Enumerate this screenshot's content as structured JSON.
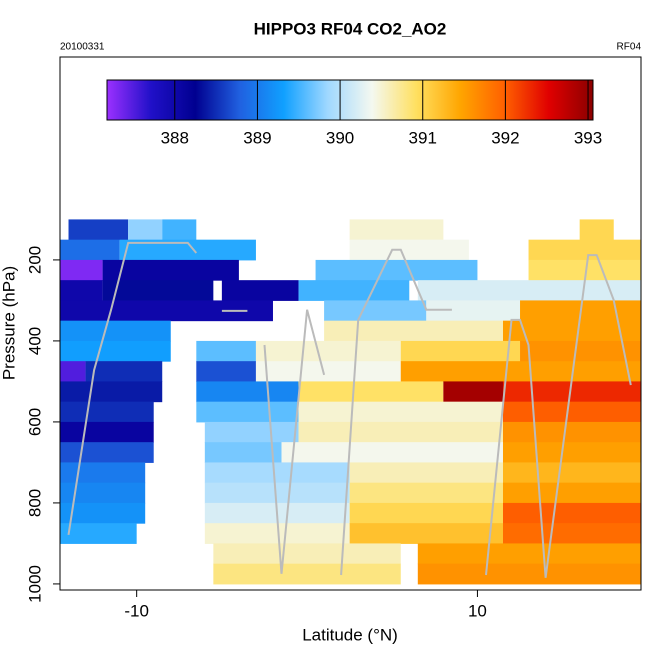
{
  "chart_data": {
    "type": "heatmap",
    "title": "HIPPO3 RF04 CO2_AO2",
    "left_note": "20100331",
    "right_note": "RF04",
    "xlabel": "Latitude (°N)",
    "ylabel": "Pressure (hPa)",
    "xlim": [
      -14.5,
      19.6
    ],
    "xticks": [
      -10,
      10
    ],
    "ylim": [
      1015,
      -301
    ],
    "yticks": [
      200,
      400,
      600,
      800,
      1000
    ],
    "clim": [
      387.18,
      393.06
    ],
    "cticks": [
      388,
      389,
      390,
      391,
      392,
      393
    ],
    "colorscale": [
      "#9b30ff",
      "#2010c8",
      "#000090",
      "#2060e0",
      "#10a0ff",
      "#a0d8ff",
      "#f4f8f0",
      "#ffe060",
      "#ffa500",
      "#ff6000",
      "#e00000",
      "#8b0000"
    ],
    "rows": [
      {
        "p": [
          100,
          150
        ],
        "cells": [
          [
            -14,
            -10.5,
            388.6
          ],
          [
            -10.5,
            -8.5,
            389.8
          ],
          [
            -8.5,
            -6.5,
            389.5
          ],
          [
            2.5,
            8,
            390.5
          ],
          [
            16,
            18,
            391
          ]
        ]
      },
      {
        "p": [
          150,
          200
        ],
        "cells": [
          [
            -14.5,
            -11,
            388.9
          ],
          [
            -11,
            -3,
            389.4
          ],
          [
            2.5,
            9.5,
            390.4
          ],
          [
            13,
            19.6,
            391
          ]
        ]
      },
      {
        "p": [
          200,
          250
        ],
        "cells": [
          [
            -14.5,
            -12,
            387.3
          ],
          [
            -12,
            -4,
            388.1
          ],
          [
            0.5,
            10,
            389.6
          ],
          [
            13,
            19.6,
            390.9
          ]
        ]
      },
      {
        "p": [
          250,
          300
        ],
        "cells": [
          [
            -14.5,
            -12,
            388
          ],
          [
            -12,
            -5.5,
            388.3
          ],
          [
            -5,
            -0.5,
            388.1
          ],
          [
            -0.5,
            6,
            389.5
          ],
          [
            6.5,
            19.6,
            390.2
          ]
        ]
      },
      {
        "p": [
          300,
          350
        ],
        "cells": [
          [
            -14.5,
            -2,
            388
          ],
          [
            1,
            7,
            389.7
          ],
          [
            7,
            12.5,
            390.3
          ],
          [
            12.5,
            19.6,
            391.5
          ]
        ]
      },
      {
        "p": [
          350,
          400
        ],
        "cells": [
          [
            -14.5,
            -8,
            389.2
          ],
          [
            1,
            11.5,
            390.6
          ],
          [
            11.5,
            19.6,
            391.5
          ]
        ]
      },
      {
        "p": [
          400,
          450
        ],
        "cells": [
          [
            -14.5,
            -8,
            389.3
          ],
          [
            -6.5,
            -3,
            389.6
          ],
          [
            -3,
            5.5,
            390.5
          ],
          [
            5.5,
            12.5,
            391
          ],
          [
            12.5,
            19.6,
            391.6
          ]
        ]
      },
      {
        "p": [
          450,
          500
        ],
        "cells": [
          [
            -14.5,
            -13,
            387.5
          ],
          [
            -13,
            -8.5,
            388.5
          ],
          [
            -6.5,
            -3,
            388.7
          ],
          [
            -3,
            5.5,
            390.4
          ],
          [
            5.5,
            19.6,
            391.5
          ]
        ]
      },
      {
        "p": [
          500,
          550
        ],
        "cells": [
          [
            -14.5,
            -8.5,
            388.4
          ],
          [
            -6.5,
            -0.5,
            389.1
          ],
          [
            -0.5,
            8,
            390.9
          ],
          [
            8,
            11.5,
            392.9
          ],
          [
            11.5,
            19.6,
            392.3
          ]
        ]
      },
      {
        "p": [
          550,
          600
        ],
        "cells": [
          [
            -14.5,
            -9,
            388.5
          ],
          [
            -6.5,
            -0.5,
            389.6
          ],
          [
            -0.5,
            11.5,
            390.5
          ],
          [
            11.5,
            19.6,
            392
          ]
        ]
      },
      {
        "p": [
          600,
          650
        ],
        "cells": [
          [
            -14.5,
            -9,
            388.1
          ],
          [
            -6,
            -0.5,
            389.8
          ],
          [
            -0.5,
            11.5,
            390.6
          ],
          [
            11.5,
            19.6,
            391.6
          ]
        ]
      },
      {
        "p": [
          650,
          700
        ],
        "cells": [
          [
            -14.5,
            -9,
            388.7
          ],
          [
            -6,
            -1.5,
            389.7
          ],
          [
            -1.5,
            11.5,
            390.4
          ],
          [
            11.5,
            19.6,
            391.5
          ]
        ]
      },
      {
        "p": [
          700,
          750
        ],
        "cells": [
          [
            -14.5,
            -9.5,
            389
          ],
          [
            -6,
            2.5,
            389.9
          ],
          [
            2.5,
            11.5,
            390.6
          ],
          [
            11.5,
            19.6,
            391.3
          ]
        ]
      },
      {
        "p": [
          750,
          800
        ],
        "cells": [
          [
            -14.5,
            -9.5,
            389.1
          ],
          [
            -6,
            2.5,
            390
          ],
          [
            2.5,
            11.5,
            390.8
          ],
          [
            11.5,
            19.6,
            391.5
          ]
        ]
      },
      {
        "p": [
          800,
          850
        ],
        "cells": [
          [
            -14.5,
            -9.5,
            389.2
          ],
          [
            -6,
            2.5,
            390.2
          ],
          [
            2.5,
            11.5,
            391
          ],
          [
            11.5,
            19.6,
            392
          ]
        ]
      },
      {
        "p": [
          850,
          900
        ],
        "cells": [
          [
            -14.5,
            -10,
            389.4
          ],
          [
            -6,
            2.5,
            390.5
          ],
          [
            2.5,
            11.5,
            391.2
          ],
          [
            11.5,
            19.6,
            391.9
          ]
        ]
      },
      {
        "p": [
          900,
          950
        ],
        "cells": [
          [
            -5.5,
            5.5,
            390.6
          ],
          [
            6.5,
            19.6,
            391.5
          ]
        ]
      },
      {
        "p": [
          950,
          1000
        ],
        "cells": [
          [
            -5.5,
            5.5,
            390.8
          ],
          [
            6.5,
            19.6,
            391.6
          ]
        ]
      }
    ],
    "track": {
      "color": "#bbbbbb",
      "x": [
        -14,
        -12.5,
        -11.5,
        -10.5,
        -7,
        -6.5,
        null,
        -5,
        -3.5,
        null,
        -2.5,
        -1.5,
        0,
        1,
        null,
        2,
        3,
        5,
        5.5,
        7,
        8.5,
        null,
        10.5,
        12,
        12.5,
        13,
        14,
        16.5,
        17,
        18,
        19
      ],
      "y": [
        879,
        472,
        323,
        158,
        158,
        183,
        null,
        326,
        326,
        null,
        410,
        975,
        323,
        484,
        null,
        978,
        348,
        175,
        175,
        323,
        323,
        null,
        978,
        348,
        348,
        410,
        985,
        188,
        188,
        299,
        509
      ]
    }
  }
}
